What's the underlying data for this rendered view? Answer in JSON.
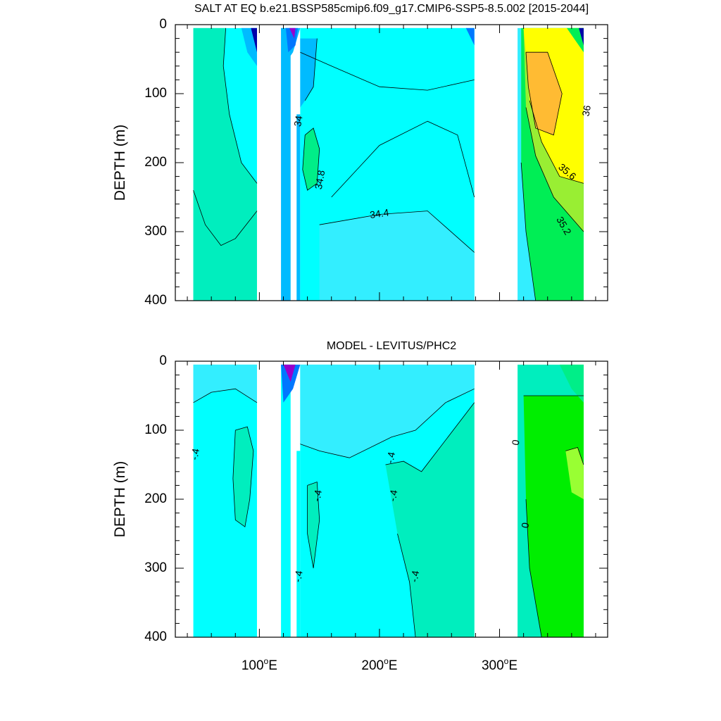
{
  "chart_data": [
    {
      "type": "heatmap",
      "title": "SALT AT EQ b.e21.BSSP585cmip6.f09_g17.CMIP6-SSP5-8.5.002 [2015-2044]",
      "ylabel": "DEPTH (m)",
      "xlim": [
        30,
        390
      ],
      "ylim": [
        400,
        0
      ],
      "y_ticks": [
        {
          "v": 0,
          "label": "0"
        },
        {
          "v": 100,
          "label": "100"
        },
        {
          "v": 200,
          "label": "200"
        },
        {
          "v": 300,
          "label": "300"
        },
        {
          "v": 400,
          "label": "400"
        }
      ],
      "x_ticks": [
        100,
        200,
        300
      ],
      "colors": {
        "background": "#00ffff",
        "main": "#00ffff",
        "west_basin": "#00eebe",
        "deep_east": "#33eeff",
        "core": "#00ee88",
        "salty_surface": "#ffff00",
        "salty_core": "#ffbb33",
        "salty_mid": "#99ee33",
        "green": "#00ee55",
        "fresh_blue": "#0077ff",
        "fresh_dark": "#0000aa",
        "fresh_purple": "#9900cc",
        "fresh_mid": "#00bbff"
      },
      "contour_labels": [
        {
          "text": "34",
          "x": 133,
          "y": 140,
          "rot": -80
        },
        {
          "text": "34.8",
          "x": 151,
          "y": 225,
          "rot": -80
        },
        {
          "text": "34.4",
          "x": 200,
          "y": 275,
          "rot": -8
        },
        {
          "text": "36",
          "x": 373,
          "y": 125,
          "rot": -80
        },
        {
          "text": "35.6",
          "x": 356,
          "y": 214,
          "rot": 40
        },
        {
          "text": "35.2",
          "x": 353,
          "y": 292,
          "rot": 60
        }
      ]
    },
    {
      "type": "heatmap",
      "title": "MODEL - LEVITUS/PHC2",
      "ylabel": "DEPTH (m)",
      "xlim": [
        30,
        390
      ],
      "ylim": [
        400,
        0
      ],
      "y_ticks": [
        {
          "v": 0,
          "label": "0"
        },
        {
          "v": 100,
          "label": "100"
        },
        {
          "v": 200,
          "label": "200"
        },
        {
          "v": 300,
          "label": "300"
        },
        {
          "v": 400,
          "label": "400"
        }
      ],
      "x_ticks": [
        100,
        200,
        300
      ],
      "colors": {
        "background": "#00ffff",
        "mid_pacific": "#00eebe",
        "upper_pacific": "#33eeff",
        "atlantic_green": "#00ee00",
        "atlantic_light": "#00ee88",
        "atlantic_lime": "#99ff33",
        "fresh_blue": "#0077ff",
        "fresh_dark": "#0000aa",
        "fresh_purple": "#9900cc"
      },
      "contour_labels": [
        {
          "text": "-.4",
          "x": 47,
          "y": 135,
          "rot": -80
        },
        {
          "text": "-.4",
          "x": 210,
          "y": 140,
          "rot": -80
        },
        {
          "text": "-.4",
          "x": 149,
          "y": 195,
          "rot": -80
        },
        {
          "text": "-.4",
          "x": 212,
          "y": 195,
          "rot": -80
        },
        {
          "text": "-.4",
          "x": 133,
          "y": 312,
          "rot": -80
        },
        {
          "text": "-.4",
          "x": 230,
          "y": 312,
          "rot": -80
        },
        {
          "text": "0",
          "x": 314,
          "y": 118,
          "rot": -80
        },
        {
          "text": "0",
          "x": 322,
          "y": 238,
          "rot": -80
        }
      ]
    }
  ],
  "x_tick_labels": [
    {
      "num": "100",
      "deg": "o",
      "hem": "E"
    },
    {
      "num": "200",
      "deg": "o",
      "hem": "E"
    },
    {
      "num": "300",
      "deg": "o",
      "hem": "E"
    }
  ]
}
